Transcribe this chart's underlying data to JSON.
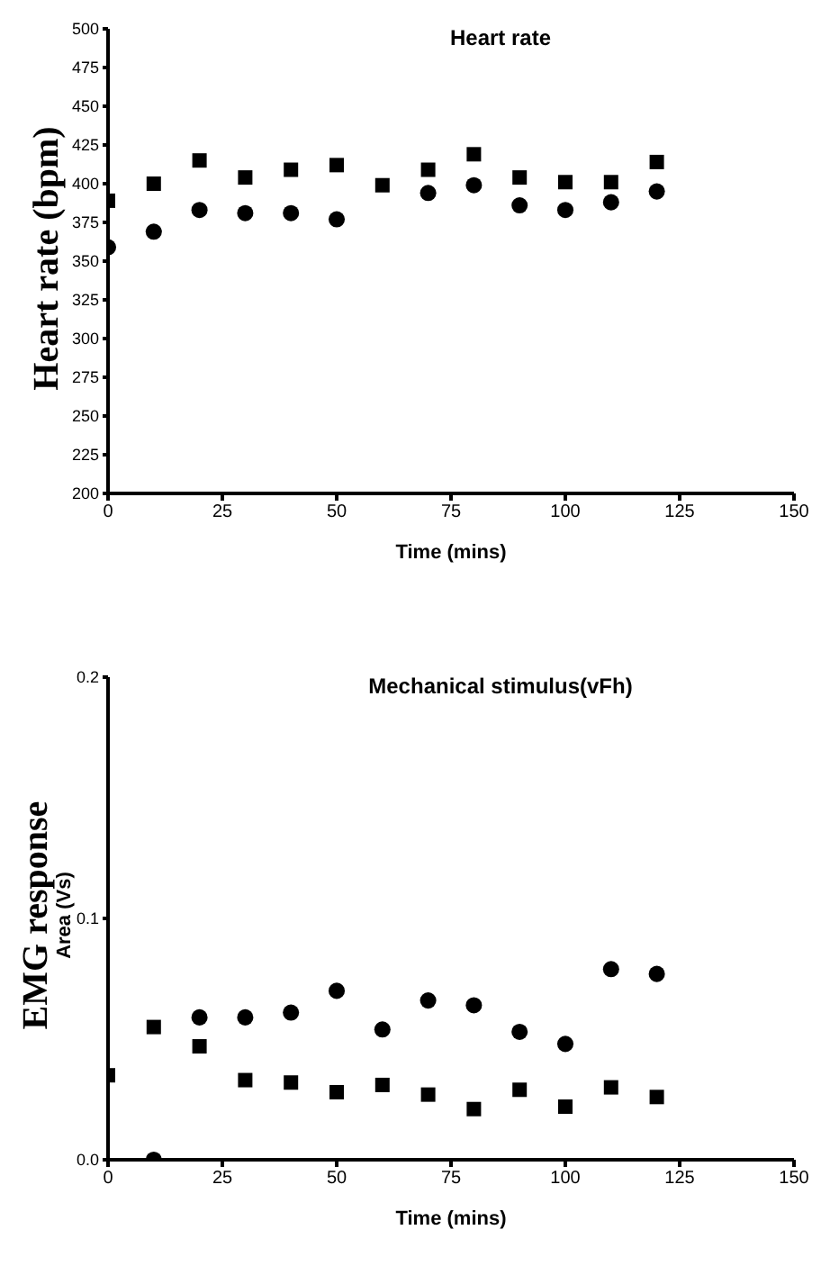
{
  "chart_data": [
    {
      "type": "scatter",
      "title": "Heart rate",
      "xlabel": "Time (mins)",
      "ylabel": "Heart rate (bpm)",
      "x": [
        0,
        10,
        20,
        30,
        40,
        50,
        60,
        70,
        80,
        90,
        100,
        110,
        120
      ],
      "xlim": [
        0,
        150
      ],
      "xticks": [
        0,
        25,
        50,
        75,
        100,
        125,
        150
      ],
      "ylim": [
        200,
        500
      ],
      "yticks": [
        200,
        225,
        250,
        275,
        300,
        325,
        350,
        375,
        400,
        425,
        450,
        475,
        500
      ],
      "grid": false,
      "legend": false,
      "series": [
        {
          "color": "#000000",
          "marker": "square",
          "values": [
            389,
            400,
            415,
            404,
            409,
            412,
            399,
            409,
            419,
            404,
            401,
            401,
            414
          ]
        },
        {
          "color": "#000000",
          "marker": "circle",
          "values": [
            359,
            369,
            383,
            381,
            381,
            377,
            null,
            394,
            399,
            386,
            383,
            388,
            395
          ]
        }
      ]
    },
    {
      "type": "scatter",
      "title": "Mechanical stimulus(vFh)",
      "xlabel": "Time (mins)",
      "ylabel": "EMG response\nArea (Vs)",
      "x": [
        0,
        10,
        20,
        30,
        40,
        50,
        60,
        70,
        80,
        90,
        100,
        110,
        120
      ],
      "xlim": [
        0,
        150
      ],
      "xticks": [
        0,
        25,
        50,
        75,
        100,
        125,
        150
      ],
      "ylim": [
        0,
        0.2
      ],
      "yticks": [
        {
          "value": 0,
          "label": "0.0"
        },
        0.1,
        0.2
      ],
      "grid": false,
      "legend": false,
      "series": [
        {
          "color": "#000000",
          "marker": "square",
          "values": [
            0.035,
            0.055,
            0.047,
            0.033,
            0.032,
            0.028,
            0.031,
            0.027,
            0.021,
            0.029,
            0.022,
            0.03,
            0.026
          ]
        },
        {
          "color": "#000000",
          "marker": "circle",
          "values": [
            null,
            0,
            0.059,
            0.059,
            0.061,
            0.07,
            0.054,
            0.066,
            0.064,
            0.053,
            0.048,
            0.079,
            0.077
          ]
        }
      ]
    }
  ]
}
